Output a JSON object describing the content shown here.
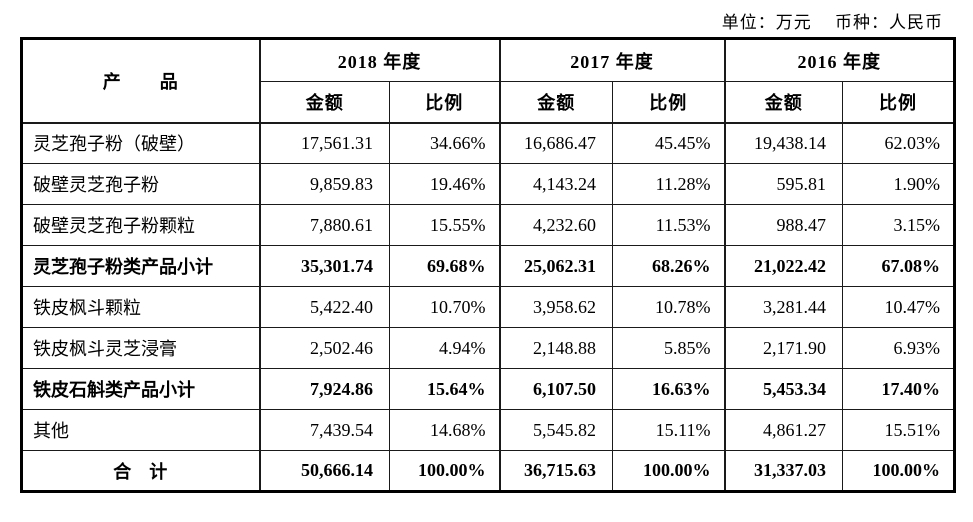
{
  "note": "单位：万元　 币种：人民币",
  "table": {
    "product_header": "产　　品",
    "years": [
      "2018 年度",
      "2017 年度",
      "2016 年度"
    ],
    "sub_headers": [
      "金额",
      "比例"
    ],
    "rows": [
      {
        "product": "灵芝孢子粉（破壁）",
        "bold": false,
        "total": false,
        "values": [
          "17,561.31",
          "34.66%",
          "16,686.47",
          "45.45%",
          "19,438.14",
          "62.03%"
        ]
      },
      {
        "product": "破壁灵芝孢子粉",
        "bold": false,
        "total": false,
        "values": [
          "9,859.83",
          "19.46%",
          "4,143.24",
          "11.28%",
          "595.81",
          "1.90%"
        ]
      },
      {
        "product": "破壁灵芝孢子粉颗粒",
        "bold": false,
        "total": false,
        "values": [
          "7,880.61",
          "15.55%",
          "4,232.60",
          "11.53%",
          "988.47",
          "3.15%"
        ]
      },
      {
        "product": "灵芝孢子粉类产品小计",
        "bold": true,
        "total": false,
        "values": [
          "35,301.74",
          "69.68%",
          "25,062.31",
          "68.26%",
          "21,022.42",
          "67.08%"
        ]
      },
      {
        "product": "铁皮枫斗颗粒",
        "bold": false,
        "total": false,
        "values": [
          "5,422.40",
          "10.70%",
          "3,958.62",
          "10.78%",
          "3,281.44",
          "10.47%"
        ]
      },
      {
        "product": "铁皮枫斗灵芝浸膏",
        "bold": false,
        "total": false,
        "values": [
          "2,502.46",
          "4.94%",
          "2,148.88",
          "5.85%",
          "2,171.90",
          "6.93%"
        ]
      },
      {
        "product": "铁皮石斛类产品小计",
        "bold": true,
        "total": false,
        "values": [
          "7,924.86",
          "15.64%",
          "6,107.50",
          "16.63%",
          "5,453.34",
          "17.40%"
        ]
      },
      {
        "product": "其他",
        "bold": false,
        "total": false,
        "values": [
          "7,439.54",
          "14.68%",
          "5,545.82",
          "15.11%",
          "4,861.27",
          "15.51%"
        ]
      },
      {
        "product": "合　计",
        "bold": true,
        "total": true,
        "values": [
          "50,666.14",
          "100.00%",
          "36,715.63",
          "100.00%",
          "31,337.03",
          "100.00%"
        ]
      }
    ]
  }
}
